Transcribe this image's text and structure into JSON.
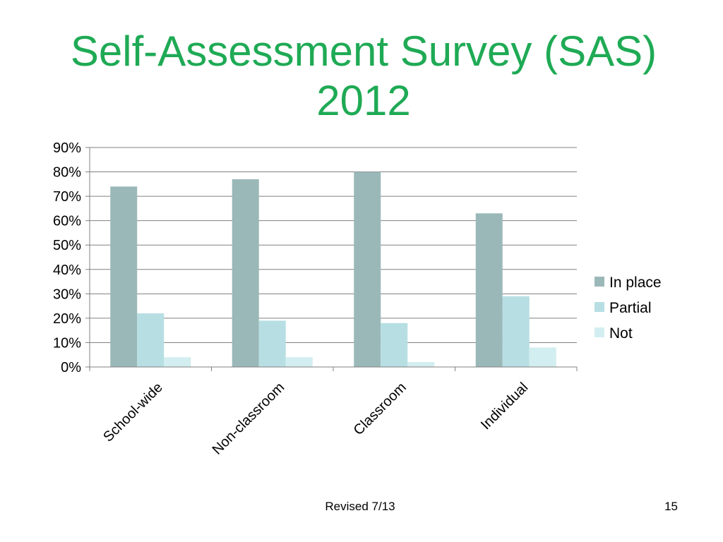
{
  "slide": {
    "title": "Self-Assessment Survey (SAS) 2012",
    "footer_revised": "Revised 7/13",
    "page_number": "15"
  },
  "chart_data": {
    "type": "bar",
    "title": "",
    "xlabel": "",
    "ylabel": "",
    "categories": [
      "School-wide",
      "Non-classroom",
      "Classroom",
      "Individual"
    ],
    "series": [
      {
        "name": "In place",
        "values": [
          74,
          77,
          80,
          63
        ],
        "color": "#9bb8b9"
      },
      {
        "name": "Partial",
        "values": [
          22,
          19,
          18,
          29
        ],
        "color": "#b7dfe3"
      },
      {
        "name": "Not",
        "values": [
          4,
          4,
          2,
          8
        ],
        "color": "#d3eef0"
      }
    ],
    "ylim": [
      0,
      90
    ],
    "y_ticks": [
      "0%",
      "10%",
      "20%",
      "30%",
      "40%",
      "50%",
      "60%",
      "70%",
      "80%",
      "90%"
    ],
    "y_tick_values": [
      0,
      10,
      20,
      30,
      40,
      50,
      60,
      70,
      80,
      90
    ],
    "grid": true,
    "legend_position": "right"
  }
}
